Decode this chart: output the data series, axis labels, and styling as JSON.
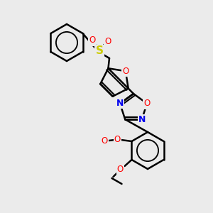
{
  "background_color": "#ebebeb",
  "bond_color": "#000000",
  "line_width": 1.8,
  "atom_colors": {
    "O": "#ff0000",
    "N": "#0000ee",
    "S": "#cccc00",
    "C": "#000000"
  },
  "figsize": [
    3.0,
    3.0
  ],
  "dpi": 100
}
